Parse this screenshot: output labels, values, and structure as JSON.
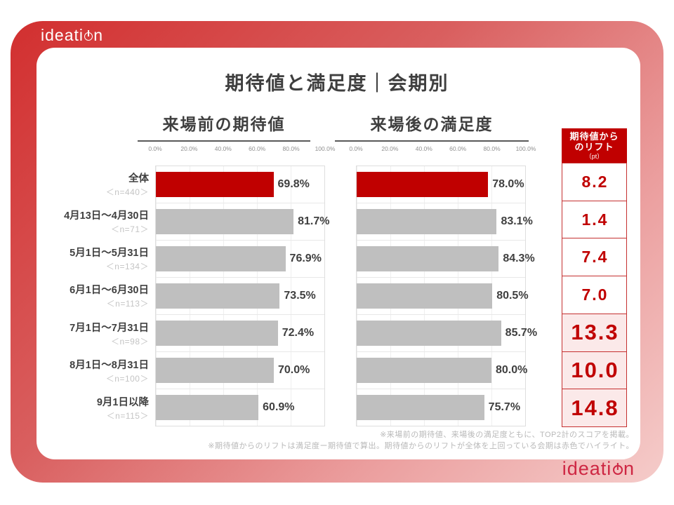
{
  "brand": {
    "logo_pre": "ideati",
    "logo_post": "n",
    "accent_red": "#C00000",
    "bar_gray": "#BFBFBF",
    "highlight_bg": "#FBE9E9"
  },
  "title": "期待値と満足度｜会期別",
  "charts": {
    "left_title": "来場前の期待値",
    "right_title": "来場後の満足度",
    "axis_ticks": [
      "0.0%",
      "20.0%",
      "40.0%",
      "60.0%",
      "80.0%",
      "100.0%"
    ]
  },
  "lift": {
    "header_line1": "期待値から",
    "header_line2": "のリフト",
    "header_unit": "（pt）"
  },
  "rows": [
    {
      "label": "全体",
      "n": "＜n=440＞",
      "expect": 69.8,
      "expect_label": "69.8%",
      "satisfy": 78.0,
      "satisfy_label": "78.0%",
      "lift": "8.2",
      "total": true,
      "highlight": false
    },
    {
      "label": "4月13日～4月30日",
      "n": "＜n=71＞",
      "expect": 81.7,
      "expect_label": "81.7%",
      "satisfy": 83.1,
      "satisfy_label": "83.1%",
      "lift": "1.4",
      "total": false,
      "highlight": false
    },
    {
      "label": "5月1日～5月31日",
      "n": "＜n=134＞",
      "expect": 76.9,
      "expect_label": "76.9%",
      "satisfy": 84.3,
      "satisfy_label": "84.3%",
      "lift": "7.4",
      "total": false,
      "highlight": false
    },
    {
      "label": "6月1日～6月30日",
      "n": "＜n=113＞",
      "expect": 73.5,
      "expect_label": "73.5%",
      "satisfy": 80.5,
      "satisfy_label": "80.5%",
      "lift": "7.0",
      "total": false,
      "highlight": false
    },
    {
      "label": "7月1日～7月31日",
      "n": "＜n=98＞",
      "expect": 72.4,
      "expect_label": "72.4%",
      "satisfy": 85.7,
      "satisfy_label": "85.7%",
      "lift": "13.3",
      "total": false,
      "highlight": true
    },
    {
      "label": "8月1日～8月31日",
      "n": "＜n=100＞",
      "expect": 70.0,
      "expect_label": "70.0%",
      "satisfy": 80.0,
      "satisfy_label": "80.0%",
      "lift": "10.0",
      "total": false,
      "highlight": true
    },
    {
      "label": "9月1日以降",
      "n": "＜n=115＞",
      "expect": 60.9,
      "expect_label": "60.9%",
      "satisfy": 75.7,
      "satisfy_label": "75.7%",
      "lift": "14.8",
      "total": false,
      "highlight": true
    }
  ],
  "footnotes": [
    "※来場前の期待値、来場後の満足度ともに、TOP2計のスコアを掲載。",
    "※期待値からのリフトは満足度ー期待値で算出。期待値からのリフトが全体を上回っている会期は赤色でハイライト。"
  ],
  "chart_data": {
    "type": "bar",
    "orientation": "horizontal",
    "title": "期待値と満足度｜会期別",
    "categories": [
      "全体",
      "4月13日～4月30日",
      "5月1日～5月31日",
      "6月1日～6月30日",
      "7月1日～7月31日",
      "8月1日～8月31日",
      "9月1日以降"
    ],
    "sample_sizes": [
      440,
      71,
      134,
      113,
      98,
      100,
      115
    ],
    "series": [
      {
        "name": "来場前の期待値",
        "unit": "%",
        "values": [
          69.8,
          81.7,
          76.9,
          73.5,
          72.4,
          70.0,
          60.9
        ]
      },
      {
        "name": "来場後の満足度",
        "unit": "%",
        "values": [
          78.0,
          83.1,
          84.3,
          80.5,
          85.7,
          80.0,
          75.7
        ]
      },
      {
        "name": "期待値からのリフト",
        "unit": "pt",
        "values": [
          8.2,
          1.4,
          7.4,
          7.0,
          13.3,
          10.0,
          14.8
        ]
      }
    ],
    "xlim": [
      0,
      100
    ],
    "x_ticks": [
      "0.0%",
      "20.0%",
      "40.0%",
      "60.0%",
      "80.0%",
      "100.0%"
    ],
    "grid": true,
    "legend_position": "none",
    "style_notes": "全体 row bars drawn red (#C00000), other bars gray (#BFBFBF); lift values exceeding the overall lift (rows 7月, 8月, 9月) highlighted with pink cell background and larger red digits"
  }
}
